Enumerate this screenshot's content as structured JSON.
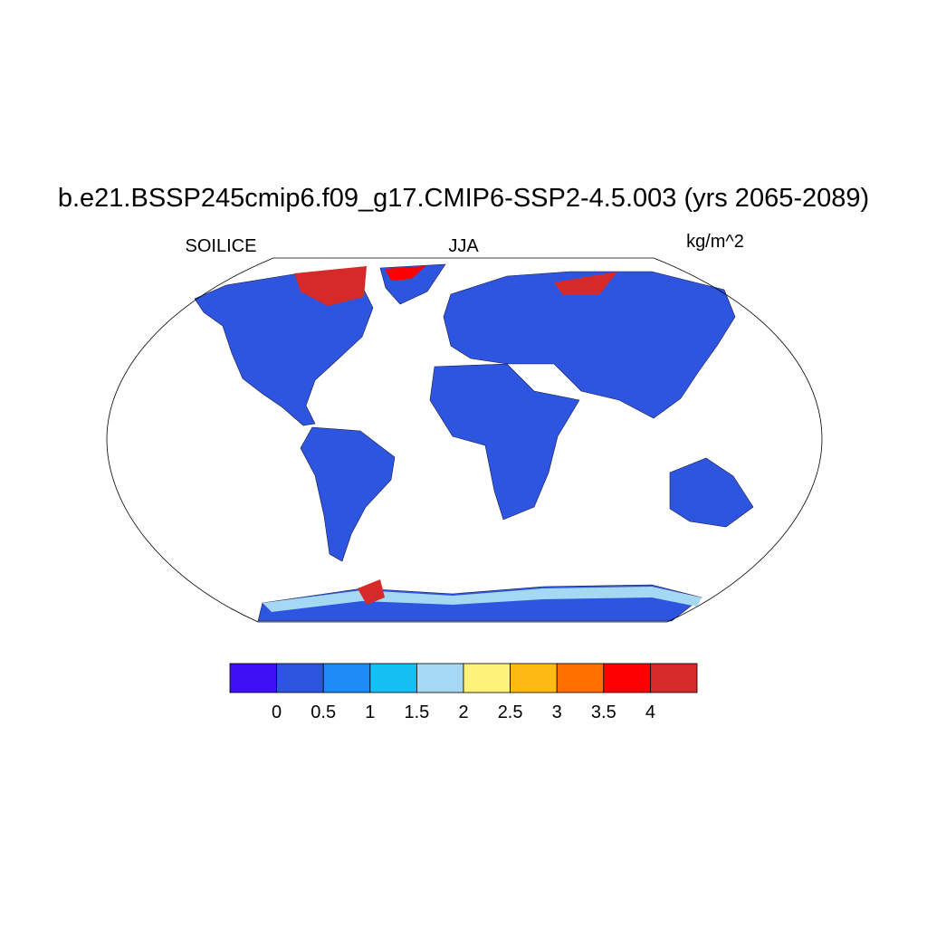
{
  "title": "b.e21.BSSP245cmip6.f09_g17.CMIP6-SSP2-4.5.003 (yrs 2065-2089)",
  "left_string": "SOILICE",
  "center_string": "JJA",
  "right_string": "kg/m^2",
  "colorbar": {
    "colors": [
      "#3f10f5",
      "#2d55e0",
      "#1f8cf5",
      "#14bff5",
      "#a5d8f2",
      "#fff27a",
      "#ffbb14",
      "#ff6e00",
      "#ff0000",
      "#d62a2a"
    ],
    "levels": [
      0,
      0.5,
      1,
      1.5,
      2,
      2.5,
      3,
      3.5,
      4
    ]
  }
}
